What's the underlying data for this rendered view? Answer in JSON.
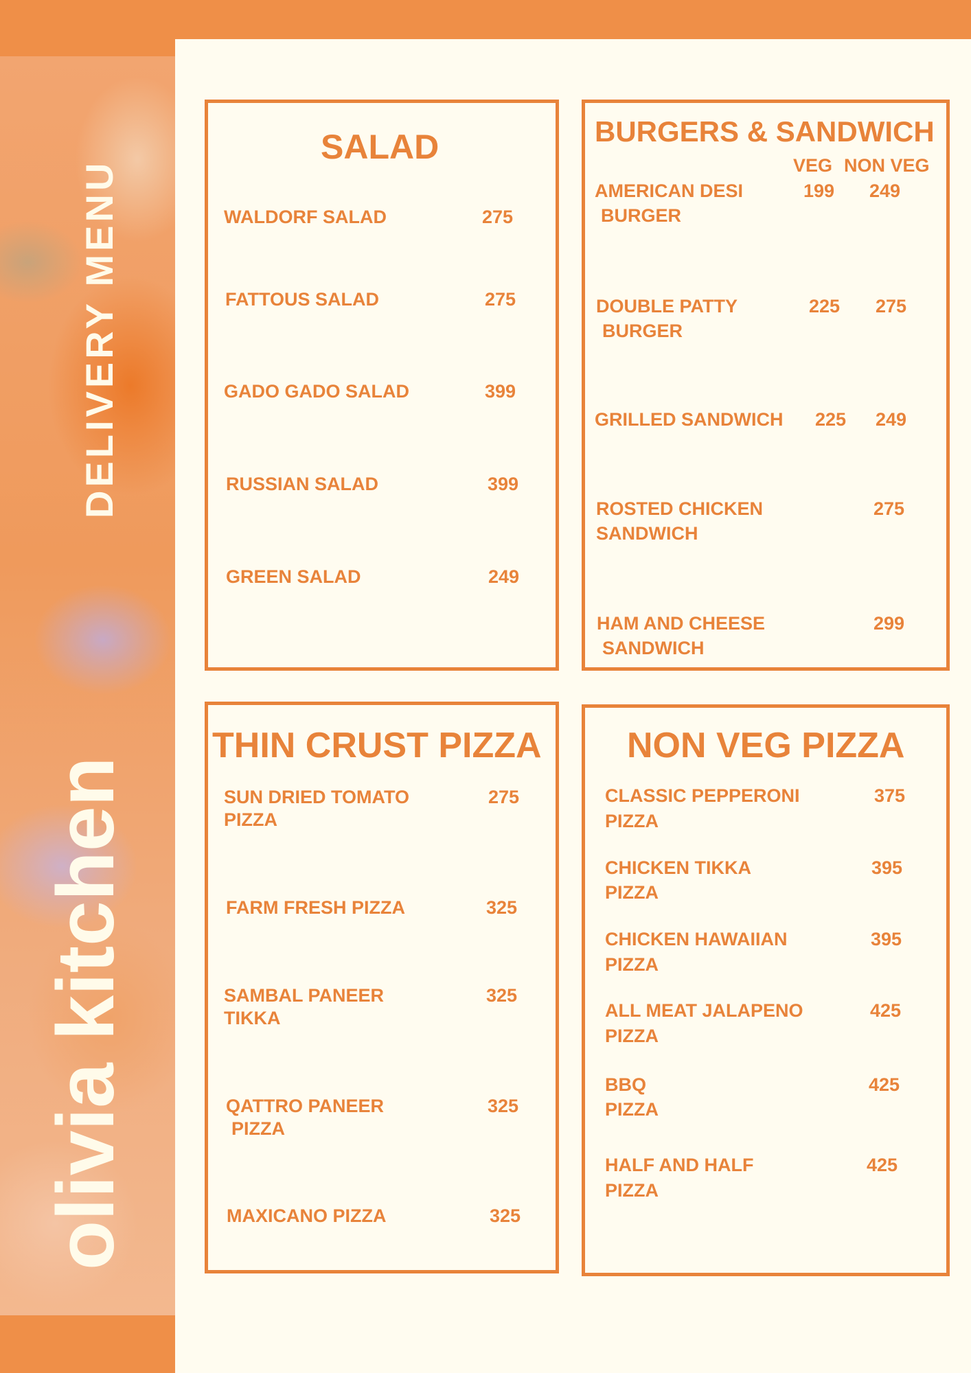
{
  "brand": {
    "name": "olivia kitchen",
    "subtitle": "DELIVERY MENU"
  },
  "colors": {
    "accent": "#e8833a",
    "background": "#fffcf0",
    "bar": "#ef8f48"
  },
  "salad": {
    "title": "SALAD",
    "items": [
      {
        "name": "WALDORF SALAD",
        "price": "275"
      },
      {
        "name": "FATTOUS SALAD",
        "price": "275"
      },
      {
        "name": "GADO GADO SALAD",
        "price": "399"
      },
      {
        "name": "RUSSIAN SALAD",
        "price": "399"
      },
      {
        "name": "GREEN SALAD",
        "price": "249"
      }
    ]
  },
  "burgers": {
    "title": "BURGERS & SANDWICH",
    "col_veg": "VEG",
    "col_nonveg": "NON VEG",
    "items": [
      {
        "name1": "AMERICAN DESI",
        "name2": "BURGER",
        "veg": "199",
        "nonveg": "249"
      },
      {
        "name1": "DOUBLE PATTY",
        "name2": "BURGER",
        "veg": "225",
        "nonveg": "275"
      },
      {
        "name1": "GRILLED SANDWICH",
        "veg": "225",
        "nonveg": "249"
      },
      {
        "name1": "ROSTED CHICKEN",
        "name2": "SANDWICH",
        "nonveg": "275"
      },
      {
        "name1": "HAM AND CHEESE",
        "name2": "SANDWICH",
        "nonveg": "299"
      }
    ]
  },
  "thin_crust": {
    "title": "THIN CRUST PIZZA",
    "items": [
      {
        "name1": "SUN DRIED TOMATO",
        "name2": "PIZZA",
        "price": "275"
      },
      {
        "name1": "FARM FRESH PIZZA",
        "price": "325"
      },
      {
        "name1": "SAMBAL PANEER",
        "name2": "TIKKA",
        "price": "325"
      },
      {
        "name1": "QATTRO PANEER",
        "name2": "PIZZA",
        "price": "325"
      },
      {
        "name1": "MAXICANO PIZZA",
        "price": "325"
      }
    ]
  },
  "non_veg_pizza": {
    "title": "NON VEG PIZZA",
    "items": [
      {
        "name1": "CLASSIC PEPPERONI",
        "name2": "PIZZA",
        "price": "375"
      },
      {
        "name1": "CHICKEN TIKKA",
        "name2": "PIZZA",
        "price": "395"
      },
      {
        "name1": "CHICKEN HAWAIIAN",
        "name2": "PIZZA",
        "price": "395"
      },
      {
        "name1": "ALL MEAT JALAPENO",
        "name2": "PIZZA",
        "price": "425"
      },
      {
        "name1": "BBQ",
        "name2": "PIZZA",
        "price": "425"
      },
      {
        "name1": "HALF AND HALF",
        "name2": "PIZZA",
        "price": "425"
      }
    ]
  }
}
